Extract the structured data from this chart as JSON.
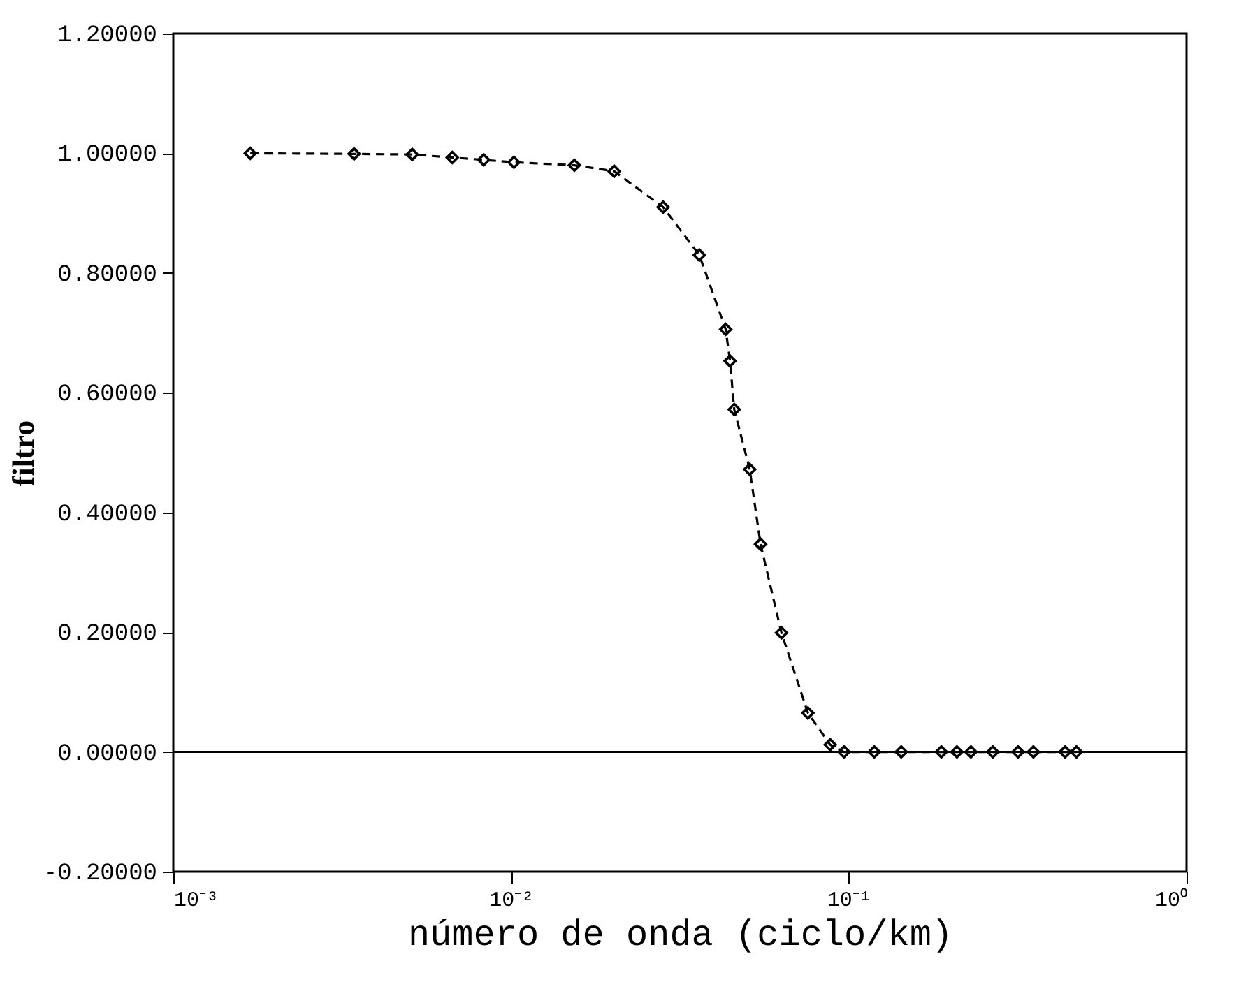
{
  "chart_data": {
    "type": "line",
    "xlabel": "número de onda (ciclo/km)",
    "ylabel": "filtro",
    "series": [
      {
        "color": "#000000",
        "x": [
          0.00169,
          0.00343,
          0.0051,
          0.0067,
          0.0083,
          0.0102,
          0.0154,
          0.0202,
          0.0282,
          0.0361,
          0.0432,
          0.0445,
          0.0458,
          0.0509,
          0.0548,
          0.0632,
          0.0757,
          0.0881,
          0.0968,
          0.119,
          0.143,
          0.188,
          0.209,
          0.23,
          0.267,
          0.317,
          0.352,
          0.437,
          0.472
        ],
        "values": [
          1.0,
          0.999,
          0.998,
          0.993,
          0.989,
          0.985,
          0.98,
          0.97,
          0.91,
          0.83,
          0.706,
          0.653,
          0.572,
          0.472,
          0.347,
          0.199,
          0.065,
          0.012,
          0.0,
          0.0,
          0.0,
          0.0,
          0.0,
          0.0,
          0.0,
          0.0,
          0.0,
          0.0,
          0.0
        ]
      }
    ],
    "log": "x",
    "marker": "diamond",
    "line_style": "dashed",
    "grid": false,
    "xlim": [
      0.001,
      1
    ],
    "xticks": [
      {
        "value": 0.001,
        "label": "10⁻³"
      },
      {
        "value": 0.01,
        "label": "10⁻²"
      },
      {
        "value": 0.1,
        "label": "10⁻¹"
      },
      {
        "value": 1,
        "label": "10⁰"
      }
    ],
    "ylim": [
      -0.2,
      1.2
    ],
    "yticks": [
      {
        "value": -0.2,
        "label": "-0.20000"
      },
      {
        "value": 0.0,
        "label": "0.00000"
      },
      {
        "value": 0.2,
        "label": "0.20000"
      },
      {
        "value": 0.4,
        "label": "0.40000"
      },
      {
        "value": 0.6,
        "label": "0.60000"
      },
      {
        "value": 0.8,
        "label": "0.80000"
      },
      {
        "value": 1.0,
        "label": "1.00000"
      },
      {
        "value": 1.2,
        "label": "1.20000"
      }
    ],
    "ref_lines": [
      {
        "axis": "y",
        "value": 0.0,
        "color": "#000000",
        "line_style": "solid"
      }
    ]
  }
}
